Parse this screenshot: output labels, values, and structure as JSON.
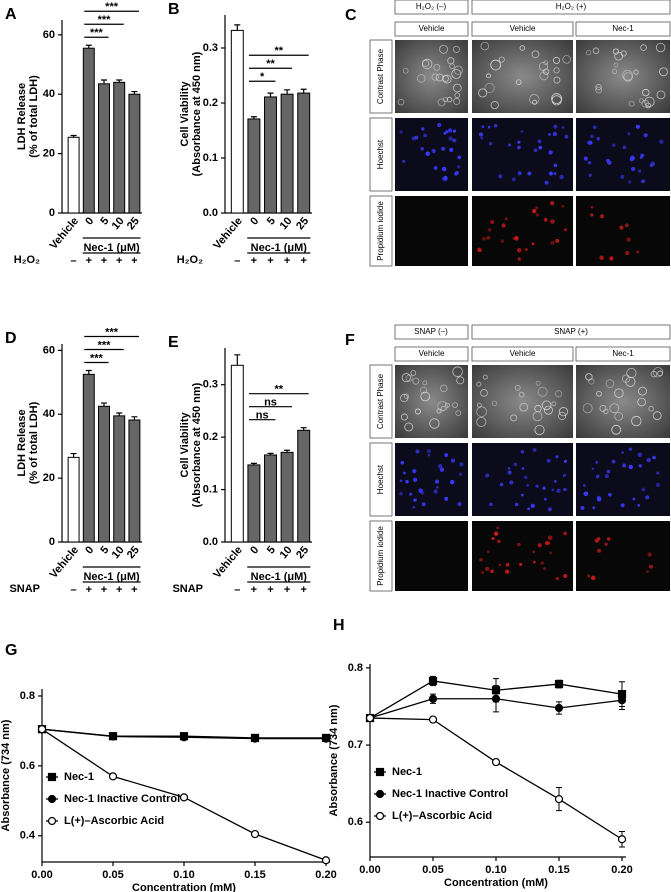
{
  "chart_data": [
    {
      "panel": "A",
      "type": "bar",
      "y_label": [
        "LDH Release",
        "(% of total LDH)"
      ],
      "categories": [
        "Vehicle",
        "0",
        "5",
        "10",
        "25"
      ],
      "values": [
        25.5,
        55.5,
        43.5,
        44,
        40
      ],
      "errors": [
        0.6,
        1,
        1.3,
        0.8,
        0.9
      ],
      "colors": [
        "#ffffff",
        "#666666",
        "#666666",
        "#666666",
        "#666666"
      ],
      "ylim": [
        0,
        65
      ],
      "yticks": [
        0,
        20,
        40,
        60
      ],
      "group_label": "Nec-1 (μM)",
      "treatment_label": "H₂O₂",
      "treatment_values": [
        "–",
        "+",
        "+",
        "+",
        "+"
      ],
      "annotations": [
        "***",
        "***",
        "***"
      ]
    },
    {
      "panel": "B",
      "type": "bar",
      "y_label": [
        "Cell Viability",
        "(Absorbance at 450 nm)"
      ],
      "categories": [
        "Vehicle",
        "0",
        "5",
        "10",
        "25"
      ],
      "values": [
        0.332,
        0.171,
        0.211,
        0.216,
        0.218
      ],
      "errors": [
        0.01,
        0.004,
        0.007,
        0.008,
        0.007
      ],
      "colors": [
        "#ffffff",
        "#666666",
        "#666666",
        "#666666",
        "#666666"
      ],
      "ylim": [
        0,
        0.36
      ],
      "yticks": [
        {
          "value": 0,
          "label": "0.0"
        },
        0.1,
        0.2,
        0.3
      ],
      "group_label": "Nec-1 (μM)",
      "treatment_label": "H₂O₂",
      "treatment_values": [
        "–",
        "+",
        "+",
        "+",
        "+"
      ],
      "annotations": [
        "**",
        "**",
        "*"
      ]
    },
    {
      "panel": "D",
      "type": "bar",
      "y_label": [
        "LDH Release",
        "(% of total LDH)"
      ],
      "categories": [
        "Vehicle",
        "0",
        "5",
        "10",
        "25"
      ],
      "values": [
        26.5,
        52.5,
        42.5,
        39.5,
        38.2
      ],
      "errors": [
        1.2,
        1.2,
        1,
        0.9,
        1
      ],
      "colors": [
        "#ffffff",
        "#666666",
        "#666666",
        "#666666",
        "#666666"
      ],
      "ylim": [
        0,
        62
      ],
      "yticks": [
        0,
        20,
        40,
        60
      ],
      "group_label": "Nec-1 (μM)",
      "treatment_label": "SNAP",
      "treatment_values": [
        "–",
        "+",
        "+",
        "+",
        "+"
      ],
      "annotations": [
        "***",
        "***",
        "***"
      ]
    },
    {
      "panel": "E",
      "type": "bar",
      "y_label": [
        "Cell Viability",
        "(Absorbance at 450 nm)"
      ],
      "categories": [
        "Vehicle",
        "0",
        "5",
        "10",
        "25"
      ],
      "values": [
        0.337,
        0.147,
        0.166,
        0.171,
        0.213
      ],
      "errors": [
        0.02,
        0.003,
        0.003,
        0.004,
        0.005
      ],
      "colors": [
        "#ffffff",
        "#666666",
        "#666666",
        "#666666",
        "#666666"
      ],
      "ylim": [
        0,
        0.37
      ],
      "yticks": [
        {
          "value": 0,
          "label": "0.0"
        },
        0.1,
        0.2,
        0.3
      ],
      "group_label": "Nec-1 (μM)",
      "treatment_label": "SNAP",
      "treatment_values": [
        "–",
        "+",
        "+",
        "+",
        "+"
      ],
      "annotations": [
        "**",
        "ns",
        "ns"
      ]
    },
    {
      "panel": "G",
      "type": "line",
      "x_label": "Concentration (mM)",
      "y_label": [
        "Absorbance (734 nm)"
      ],
      "x": [
        0,
        0.05,
        0.1,
        0.15,
        0.2
      ],
      "xlim": [
        0,
        0.2
      ],
      "xticks": [
        {
          "value": 0,
          "label": "0.00"
        },
        0.05,
        {
          "value": 0.1,
          "label": "0.10"
        },
        0.15,
        {
          "value": 0.2,
          "label": "0.20"
        }
      ],
      "ylim": [
        0.325,
        0.82
      ],
      "yticks": [
        0.4,
        0.6,
        0.8
      ],
      "legend": "lower left",
      "series": [
        {
          "name": "Nec-1",
          "color": "#000000",
          "marker": "square",
          "values": [
            0.705,
            0.685,
            0.685,
            0.68,
            0.68
          ]
        },
        {
          "name": "Nec-1 Inactive Control",
          "color": "#000000",
          "marker": "circle",
          "values": [
            0.705,
            0.684,
            0.682,
            0.678,
            0.678
          ]
        },
        {
          "name": "L(+)–Ascorbic Acid",
          "color": "#000000",
          "marker": "open-circle",
          "values": [
            0.705,
            0.57,
            0.51,
            0.405,
            0.33
          ]
        }
      ]
    },
    {
      "panel": "H",
      "type": "line",
      "x_label": "Concentration (mM)",
      "y_label": [
        "Absorbance (734 nm)"
      ],
      "x": [
        0,
        0.05,
        0.1,
        0.15,
        0.2
      ],
      "xlim": [
        0,
        0.2
      ],
      "xticks": [
        {
          "value": 0,
          "label": "0.00"
        },
        0.05,
        {
          "value": 0.1,
          "label": "0.10"
        },
        0.15,
        {
          "value": 0.2,
          "label": "0.20"
        }
      ],
      "ylim": [
        0.555,
        0.805
      ],
      "yticks": [
        0.6,
        0.7,
        0.8
      ],
      "legend": "lower left",
      "series": [
        {
          "name": "Nec-1",
          "color": "#000000",
          "marker": "square",
          "values": [
            0.735,
            0.783,
            0.771,
            0.779,
            0.766
          ],
          "errors": [
            0.003,
            0.006,
            0.015,
            0.005,
            0.016
          ]
        },
        {
          "name": "Nec-1 Inactive Control",
          "color": "#000000",
          "marker": "circle",
          "values": [
            0.735,
            0.76,
            0.76,
            0.748,
            0.758
          ],
          "errors": [
            0.003,
            0.006,
            0.017,
            0.008,
            0.012
          ]
        },
        {
          "name": "L(+)–Ascorbic Acid",
          "color": "#000000",
          "marker": "open-circle",
          "values": [
            0.735,
            0.733,
            0.678,
            0.63,
            0.578
          ],
          "errors": [
            0.002,
            0.002,
            0.002,
            0.015,
            0.01
          ]
        }
      ]
    }
  ],
  "image_panels": [
    {
      "panel": "C",
      "group_headers": [
        "H₂O₂ (–)",
        "H₂O₂ (+)"
      ],
      "column_headers": [
        "Vehicle",
        "Vehicle",
        "Nec-1"
      ],
      "row_labels": [
        "Contrast Phase",
        "Hoechst",
        "Propidium iodide"
      ]
    },
    {
      "panel": "F",
      "group_headers": [
        "SNAP (–)",
        "SNAP (+)"
      ],
      "column_headers": [
        "Vehicle",
        "Vehicle",
        "Nec-1"
      ],
      "row_labels": [
        "Contrast Phase",
        "Hoechst",
        "Propidium iodide"
      ]
    }
  ]
}
